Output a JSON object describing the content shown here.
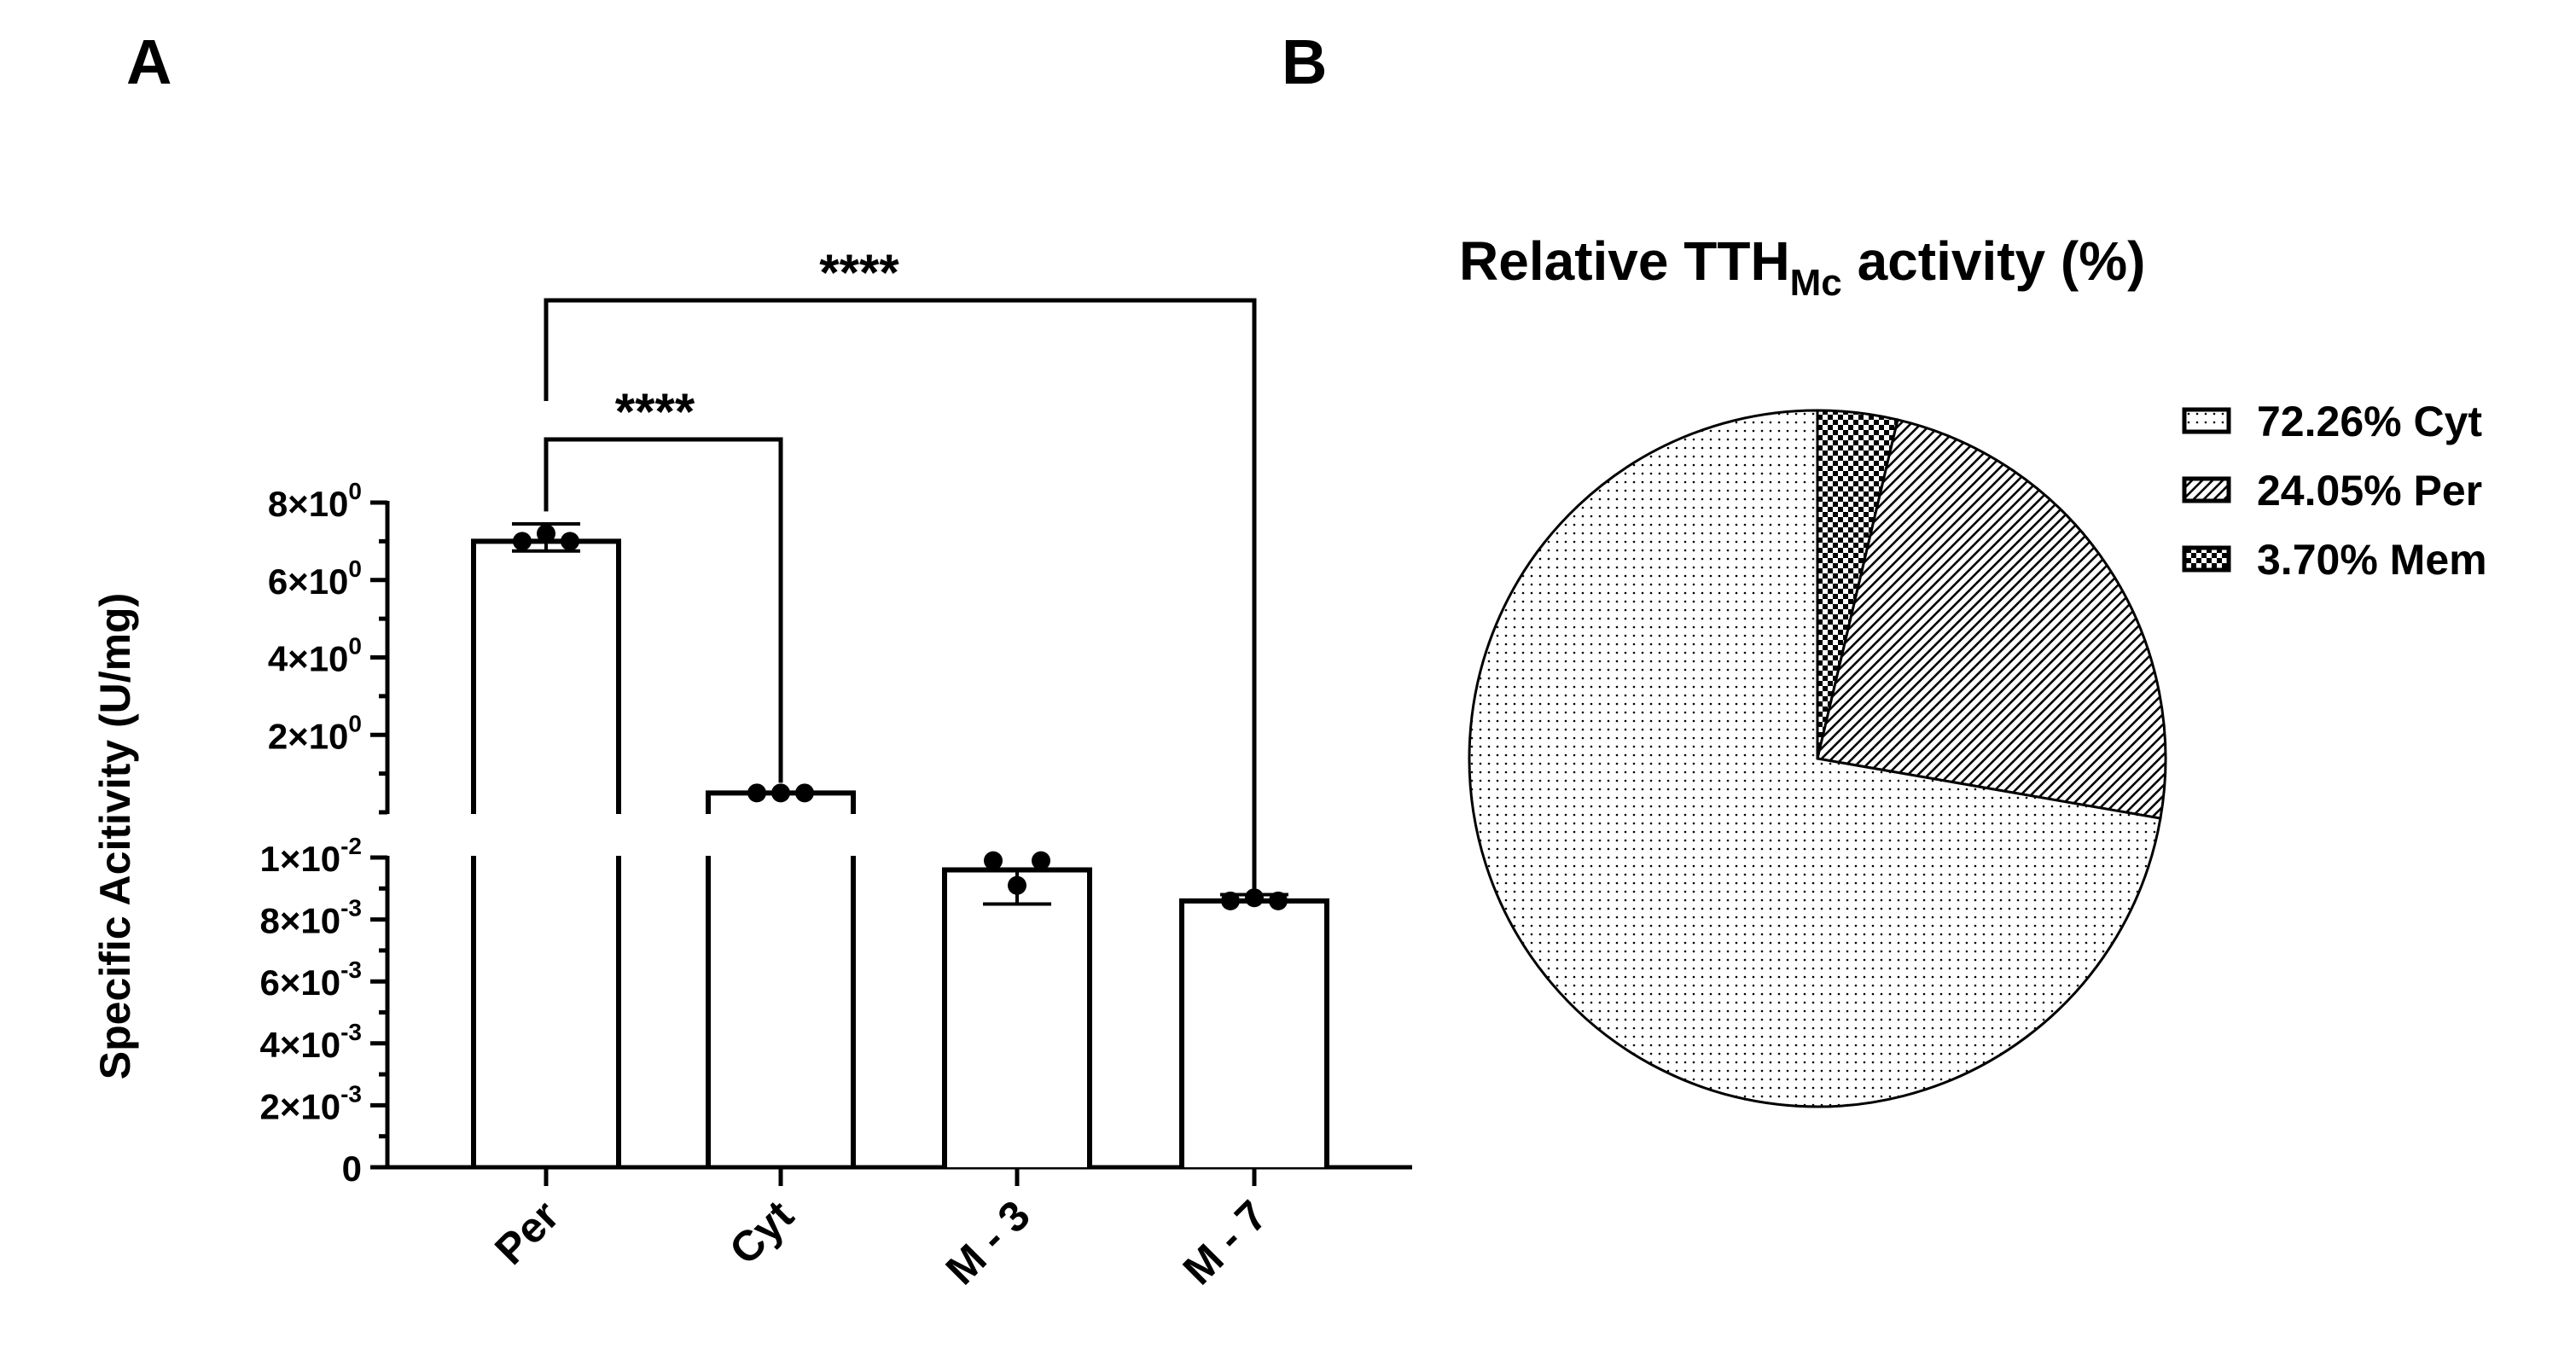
{
  "panels": {
    "a_label": "A",
    "b_label": "B"
  },
  "chart_data": [
    {
      "type": "bar",
      "panel": "A",
      "ylabel": "Specific Acitivity (U/mg)",
      "xlabel": "",
      "y_scale": "segmented (broken axis)",
      "ylim_lower": [
        0,
        0.01
      ],
      "ylim_upper": [
        0,
        8
      ],
      "categories": [
        "Per",
        "Cyt",
        "M - 3",
        "M - 7"
      ],
      "values": [
        7.0,
        0.5,
        0.0096,
        0.0086
      ],
      "error_high": [
        7.45,
        null,
        null,
        0.0088
      ],
      "error_low": [
        6.75,
        null,
        0.0085,
        null
      ],
      "points": [
        [
          7.0,
          7.2,
          7.0
        ],
        [
          0.5,
          0.5,
          0.5
        ],
        [
          0.0099,
          0.0091,
          0.0099
        ],
        [
          0.0086,
          0.0087,
          0.0086
        ]
      ],
      "tick_labels_upper": [
        {
          "mantissa": "2×10",
          "exp": "0",
          "value": 2
        },
        {
          "mantissa": "4×10",
          "exp": "0",
          "value": 4
        },
        {
          "mantissa": "6×10",
          "exp": "0",
          "value": 6
        },
        {
          "mantissa": "8×10",
          "exp": "0",
          "value": 8
        }
      ],
      "tick_labels_lower": [
        {
          "mantissa": "0",
          "exp": "",
          "value": 0
        },
        {
          "mantissa": "2×10",
          "exp": "-3",
          "value": 0.002
        },
        {
          "mantissa": "4×10",
          "exp": "-3",
          "value": 0.004
        },
        {
          "mantissa": "6×10",
          "exp": "-3",
          "value": 0.006
        },
        {
          "mantissa": "8×10",
          "exp": "-3",
          "value": 0.008
        },
        {
          "mantissa": "1×10",
          "exp": "-2",
          "value": 0.01
        }
      ],
      "significance": [
        {
          "from": "Per",
          "to": "Cyt",
          "label": "****"
        },
        {
          "from": "Per",
          "to": "M - 7",
          "label": "****"
        }
      ]
    },
    {
      "type": "pie",
      "panel": "B",
      "title_main": "Relative TTH",
      "title_sub": "Mc",
      "title_tail": " activity (%)",
      "slices": [
        {
          "label": "Mem",
          "value": 3.7,
          "legend": "3.70%  Mem",
          "pattern": "checker"
        },
        {
          "label": "Per",
          "value": 24.05,
          "legend": "24.05%  Per",
          "pattern": "hatch"
        },
        {
          "label": "Cyt",
          "value": 72.26,
          "legend": "72.26%  Cyt",
          "pattern": "dots"
        }
      ],
      "legend_order": [
        "Cyt",
        "Per",
        "Mem"
      ],
      "legend_placement": "right"
    }
  ]
}
